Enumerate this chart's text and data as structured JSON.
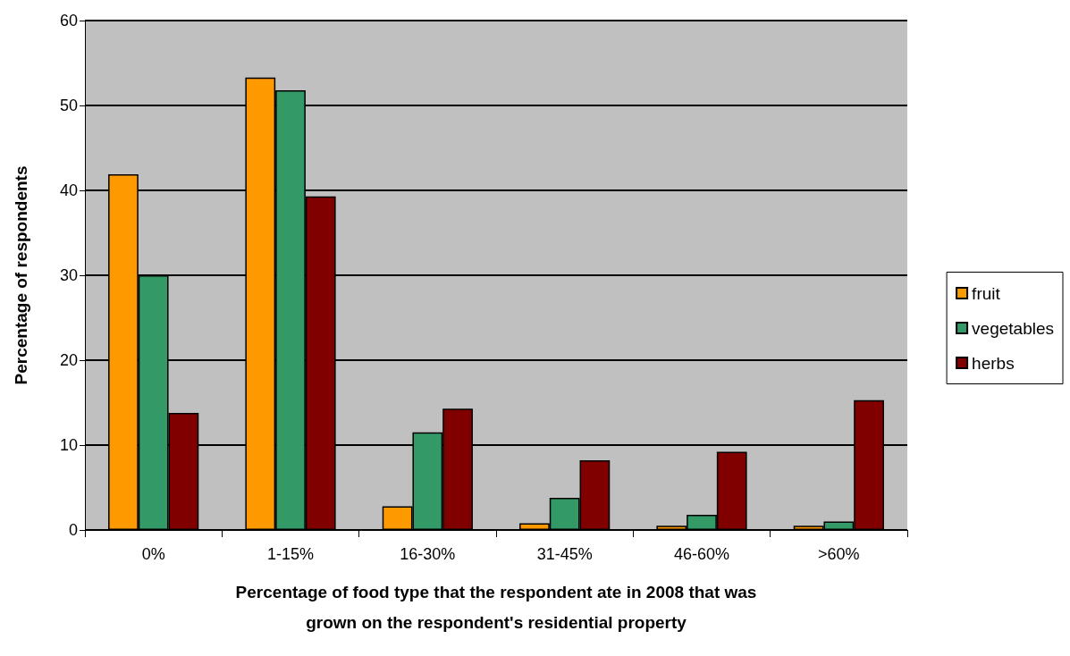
{
  "chart_data": {
    "type": "bar",
    "xlabel": "Percentage of food type that the respondent ate in 2008 that was\ngrown on the respondent's residential property",
    "ylabel": "Percentage of respondents",
    "categories": [
      "0%",
      "1-15%",
      "16-30%",
      "31-45%",
      "46-60%",
      ">60%"
    ],
    "series": [
      {
        "name": "fruit",
        "color": "#ff9900",
        "values": [
          41.9,
          53.3,
          2.8,
          0.8,
          0.5,
          0.5
        ]
      },
      {
        "name": "vegetables",
        "color": "#339966",
        "values": [
          30.0,
          51.8,
          11.5,
          3.8,
          1.8,
          1.0
        ]
      },
      {
        "name": "herbs",
        "color": "#800000",
        "values": [
          13.8,
          39.3,
          14.3,
          8.2,
          9.2,
          15.3
        ]
      }
    ],
    "ylim": [
      0,
      60
    ],
    "yticks": [
      0,
      10,
      20,
      30,
      40,
      50,
      60
    ],
    "grid": "y",
    "legend": "right"
  }
}
